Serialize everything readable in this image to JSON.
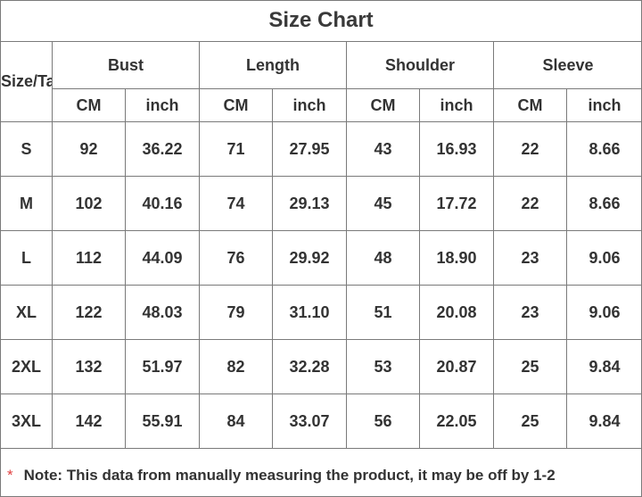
{
  "title": "Size Chart",
  "size_header": "Size/Ta",
  "groups": [
    "Bust",
    "Length",
    "Shoulder",
    "Sleeve"
  ],
  "units": [
    "CM",
    "inch"
  ],
  "rows": [
    {
      "size": "S",
      "values": [
        "92",
        "36.22",
        "71",
        "27.95",
        "43",
        "16.93",
        "22",
        "8.66"
      ]
    },
    {
      "size": "M",
      "values": [
        "102",
        "40.16",
        "74",
        "29.13",
        "45",
        "17.72",
        "22",
        "8.66"
      ]
    },
    {
      "size": "L",
      "values": [
        "112",
        "44.09",
        "76",
        "29.92",
        "48",
        "18.90",
        "23",
        "9.06"
      ]
    },
    {
      "size": "XL",
      "values": [
        "122",
        "48.03",
        "79",
        "31.10",
        "51",
        "20.08",
        "23",
        "9.06"
      ]
    },
    {
      "size": "2XL",
      "values": [
        "132",
        "51.97",
        "82",
        "32.28",
        "53",
        "20.87",
        "25",
        "9.84"
      ]
    },
    {
      "size": "3XL",
      "values": [
        "142",
        "55.91",
        "84",
        "33.07",
        "56",
        "22.05",
        "25",
        "9.84"
      ]
    }
  ],
  "note": {
    "marker": "*",
    "text": "Note: This data from manually measuring the product, it may be off by 1-2"
  },
  "colors": {
    "border": "#7a7a7a",
    "text": "#333333",
    "asterisk": "#e04040"
  }
}
